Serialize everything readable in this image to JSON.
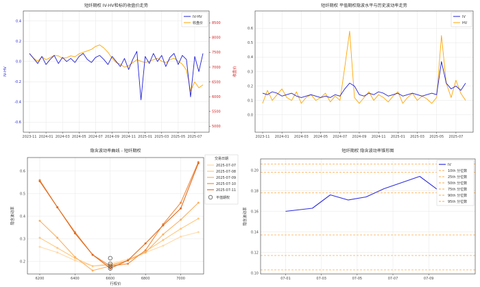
{
  "chart_data": [
    {
      "id": "c1",
      "type": "line",
      "title": "短纤期权 IV-HV和标的收盘价走势",
      "xlabel": "",
      "ylabel": "IV-HV",
      "y2label": "收盘价",
      "x_ticks": [
        "2023-11",
        "2024-01",
        "2024-03",
        "2024-05",
        "2024-07",
        "2024-09",
        "2024-11",
        "2025-01",
        "2025-03",
        "2025-05",
        "2025-07"
      ],
      "x_range": [
        0,
        21
      ],
      "ylim": [
        -0.7,
        0.5
      ],
      "yticks": [
        -0.6,
        -0.4,
        -0.2,
        0.0,
        0.2,
        0.4
      ],
      "y2lim": [
        4800,
        8900
      ],
      "y2ticks": [
        5000,
        5500,
        6000,
        6500,
        7000,
        7500,
        8000,
        8500
      ],
      "grid": true,
      "legend": "top-right",
      "series": [
        {
          "name": "IV-HV",
          "color": "#1f1fd6",
          "axis": "left",
          "x": [
            0,
            0.5,
            1,
            1.5,
            2,
            2.5,
            3,
            3.5,
            4,
            4.5,
            5,
            5.5,
            6,
            6.5,
            7,
            7.5,
            8,
            8.5,
            9,
            9.5,
            10,
            10.5,
            11,
            11.5,
            12,
            12.5,
            13,
            13.5,
            14,
            14.5,
            15,
            15.5,
            16,
            16.5,
            17,
            17.5,
            18,
            18.5,
            19,
            19.5,
            20,
            20.5,
            21
          ],
          "values": [
            0.08,
            0.03,
            -0.02,
            0.05,
            -0.03,
            0.02,
            0.06,
            -0.02,
            0.04,
            0.0,
            0.03,
            -0.01,
            0.05,
            0.08,
            0.02,
            -0.01,
            0.04,
            0.06,
            0.02,
            -0.03,
            0.05,
            0.0,
            -0.05,
            0.03,
            -0.08,
            0.02,
            0.1,
            -0.38,
            0.05,
            -0.02,
            0.08,
            0.0,
            0.06,
            -0.05,
            0.04,
            0.08,
            -0.03,
            0.06,
            0.02,
            -0.35,
            0.05,
            -0.1,
            0.08
          ]
        },
        {
          "name": "收盘价",
          "color": "#ffa500",
          "axis": "right",
          "x": [
            0,
            0.5,
            1,
            1.5,
            2,
            2.5,
            3,
            3.5,
            4,
            4.5,
            5,
            5.5,
            6,
            6.5,
            7,
            7.5,
            8,
            8.5,
            9,
            9.5,
            10,
            10.5,
            11,
            11.5,
            12,
            12.5,
            13,
            13.5,
            14,
            14.5,
            15,
            15.5,
            16,
            16.5,
            17,
            17.5,
            18,
            18.5,
            19,
            19.5,
            20,
            20.5,
            21
          ],
          "values": [
            7450,
            7300,
            7200,
            7350,
            7250,
            7320,
            7400,
            7380,
            7300,
            7320,
            7380,
            7350,
            7450,
            7500,
            7550,
            7600,
            7700,
            7750,
            7650,
            7500,
            7300,
            7150,
            7100,
            7000,
            7050,
            7150,
            7250,
            7200,
            7150,
            7200,
            7250,
            7300,
            7200,
            7150,
            7250,
            7300,
            7200,
            7100,
            6900,
            6200,
            6500,
            6300,
            6400
          ]
        }
      ]
    },
    {
      "id": "c2",
      "type": "line",
      "title": "短纤期权 平值期权隐波水平与历史波动率走势",
      "xlabel": "",
      "ylabel": "",
      "x_ticks": [
        "2023-11",
        "2024-01",
        "2024-03",
        "2024-05",
        "2024-07",
        "2024-09",
        "2024-11",
        "2025-01",
        "2025-03",
        "2025-05",
        "2025-07"
      ],
      "x_range": [
        0,
        21
      ],
      "ylim": [
        -0.12,
        0.72
      ],
      "yticks": [
        0.0,
        0.1,
        0.2,
        0.3,
        0.4,
        0.5,
        0.6
      ],
      "grid": true,
      "legend": "top-right",
      "series": [
        {
          "name": "IV",
          "color": "#1f1fd6",
          "x": [
            0,
            0.5,
            1,
            1.5,
            2,
            2.5,
            3,
            3.5,
            4,
            4.5,
            5,
            5.5,
            6,
            6.5,
            7,
            7.5,
            8,
            8.5,
            9,
            9.5,
            10,
            10.5,
            11,
            11.5,
            12,
            12.5,
            13,
            13.5,
            14,
            14.5,
            15,
            15.5,
            16,
            16.5,
            17,
            17.5,
            18,
            18.5,
            19,
            19.5,
            20,
            20.5,
            21
          ],
          "values": [
            0.15,
            0.14,
            0.16,
            0.15,
            0.13,
            0.14,
            0.15,
            0.13,
            0.12,
            0.13,
            0.14,
            0.13,
            0.12,
            0.13,
            0.12,
            0.14,
            0.13,
            0.18,
            0.22,
            0.2,
            0.14,
            0.13,
            0.15,
            0.14,
            0.16,
            0.15,
            0.13,
            0.14,
            0.15,
            0.13,
            0.14,
            0.15,
            0.14,
            0.13,
            0.14,
            0.15,
            0.14,
            0.37,
            0.22,
            0.18,
            0.2,
            0.17,
            0.22
          ]
        },
        {
          "name": "HV",
          "color": "#ffa500",
          "x": [
            0,
            0.5,
            1,
            1.5,
            2,
            2.5,
            3,
            3.5,
            4,
            4.5,
            5,
            5.5,
            6,
            6.5,
            7,
            7.5,
            8,
            8.5,
            9,
            9.5,
            10,
            10.5,
            11,
            11.5,
            12,
            12.5,
            13,
            13.5,
            14,
            14.5,
            15,
            15.5,
            16,
            16.5,
            17,
            17.5,
            18,
            18.5,
            19,
            19.5,
            20,
            20.5,
            21
          ],
          "values": [
            0.08,
            0.17,
            0.1,
            0.14,
            0.18,
            0.12,
            0.1,
            0.16,
            0.08,
            0.12,
            0.14,
            0.1,
            0.12,
            0.15,
            0.09,
            0.13,
            0.1,
            0.33,
            0.58,
            0.12,
            0.08,
            0.12,
            0.16,
            0.1,
            0.14,
            0.12,
            0.09,
            0.13,
            0.16,
            0.08,
            0.12,
            0.15,
            0.1,
            0.13,
            0.11,
            0.08,
            0.12,
            0.55,
            0.22,
            0.12,
            0.24,
            0.15,
            0.1
          ]
        }
      ]
    },
    {
      "id": "c3",
      "type": "line",
      "title": "隐含波动率曲线 - 短纤期权",
      "xlabel": "行权价",
      "ylabel": "隐含波动率",
      "xlim": [
        6130,
        7130
      ],
      "xticks": [
        6200,
        6400,
        6600,
        6800,
        7000
      ],
      "ylim": [
        0.145,
        0.66
      ],
      "yticks": [
        0.2,
        0.3,
        0.4,
        0.5,
        0.6
      ],
      "grid": true,
      "legend": "outside-right",
      "legend_title": "交易日期",
      "atm_label": "平值期权",
      "series": [
        {
          "name": "2025-07-07",
          "color": "#ffd9a8",
          "x": [
            6200,
            6300,
            6400,
            6500,
            6600,
            6700,
            6800,
            6900,
            7000,
            7100
          ],
          "values": [
            0.265,
            0.24,
            0.205,
            0.18,
            0.19,
            0.21,
            0.24,
            0.27,
            0.31,
            0.33
          ]
        },
        {
          "name": "2025-07-08",
          "color": "#ffc880",
          "x": [
            6200,
            6300,
            6400,
            6500,
            6600,
            6700,
            6800,
            6900,
            7000,
            7100
          ],
          "values": [
            0.305,
            0.26,
            0.215,
            0.18,
            0.185,
            0.205,
            0.245,
            0.295,
            0.345,
            0.39
          ]
        },
        {
          "name": "2025-07-09",
          "color": "#fbb060",
          "x": [
            6200,
            6300,
            6400,
            6500,
            6600,
            6700,
            6800,
            6900,
            7000,
            7100
          ],
          "values": [
            0.38,
            0.305,
            0.22,
            0.16,
            0.18,
            0.205,
            0.24,
            0.32,
            0.385,
            0.46
          ]
        },
        {
          "name": "2025-07-10",
          "color": "#f08a3a",
          "x": [
            6200,
            6300,
            6400,
            6500,
            6600,
            6700,
            6800,
            6900,
            7000,
            7100
          ],
          "values": [
            0.56,
            0.44,
            0.33,
            0.23,
            0.18,
            0.19,
            0.25,
            0.365,
            0.46,
            0.64
          ]
        },
        {
          "name": "2025-07-11",
          "color": "#e06a20",
          "x": [
            6200,
            6300,
            6400,
            6500,
            6600,
            6700,
            6800,
            6900,
            7000,
            7100
          ],
          "values": [
            0.555,
            0.44,
            0.325,
            0.23,
            0.17,
            0.205,
            0.28,
            0.36,
            0.435,
            0.635
          ]
        }
      ],
      "atm_points": [
        {
          "x": 6600,
          "y": 0.215
        },
        {
          "x": 6600,
          "y": 0.19
        },
        {
          "x": 6600,
          "y": 0.18
        },
        {
          "x": 6600,
          "y": 0.17
        }
      ]
    },
    {
      "id": "c4",
      "type": "line",
      "title": "短纤期权 隐含波动率锥形图",
      "xlabel": "",
      "ylabel": "隐含波动率",
      "x_ticks": [
        "07-01",
        "07-03",
        "07-05",
        "07-07",
        "07-09"
      ],
      "x_range": [
        -1.4,
        10.6
      ],
      "ylim": [
        0.099,
        0.211
      ],
      "yticks": [
        0.1,
        0.12,
        0.14,
        0.16,
        0.18,
        0.2
      ],
      "grid": true,
      "legend": "top-right",
      "series": [
        {
          "name": "IV",
          "color": "#2d2de0",
          "x": [
            0,
            1.5,
            2.5,
            3.5,
            4.5,
            5.5,
            6.5,
            7.5,
            8.5,
            9.2
          ],
          "values": [
            0.16,
            0.163,
            0.176,
            0.171,
            0.174,
            0.182,
            0.188,
            0.194,
            0.181,
            0.177
          ]
        }
      ],
      "percentile_lines": [
        {
          "name": "10th 分位数",
          "value": 0.103,
          "color": "#ffa640"
        },
        {
          "name": "25th 分位数",
          "value": 0.117,
          "color": "#ffa640"
        },
        {
          "name": "50th 分位数",
          "value": 0.137,
          "color": "#ffa640"
        },
        {
          "name": "75th 分位数",
          "value": 0.178,
          "color": "#ffa640"
        },
        {
          "name": "90th 分位数",
          "value": 0.198,
          "color": "#ffa640"
        },
        {
          "name": "95th 分位数",
          "value": 0.206,
          "color": "#ffa640"
        }
      ]
    }
  ]
}
